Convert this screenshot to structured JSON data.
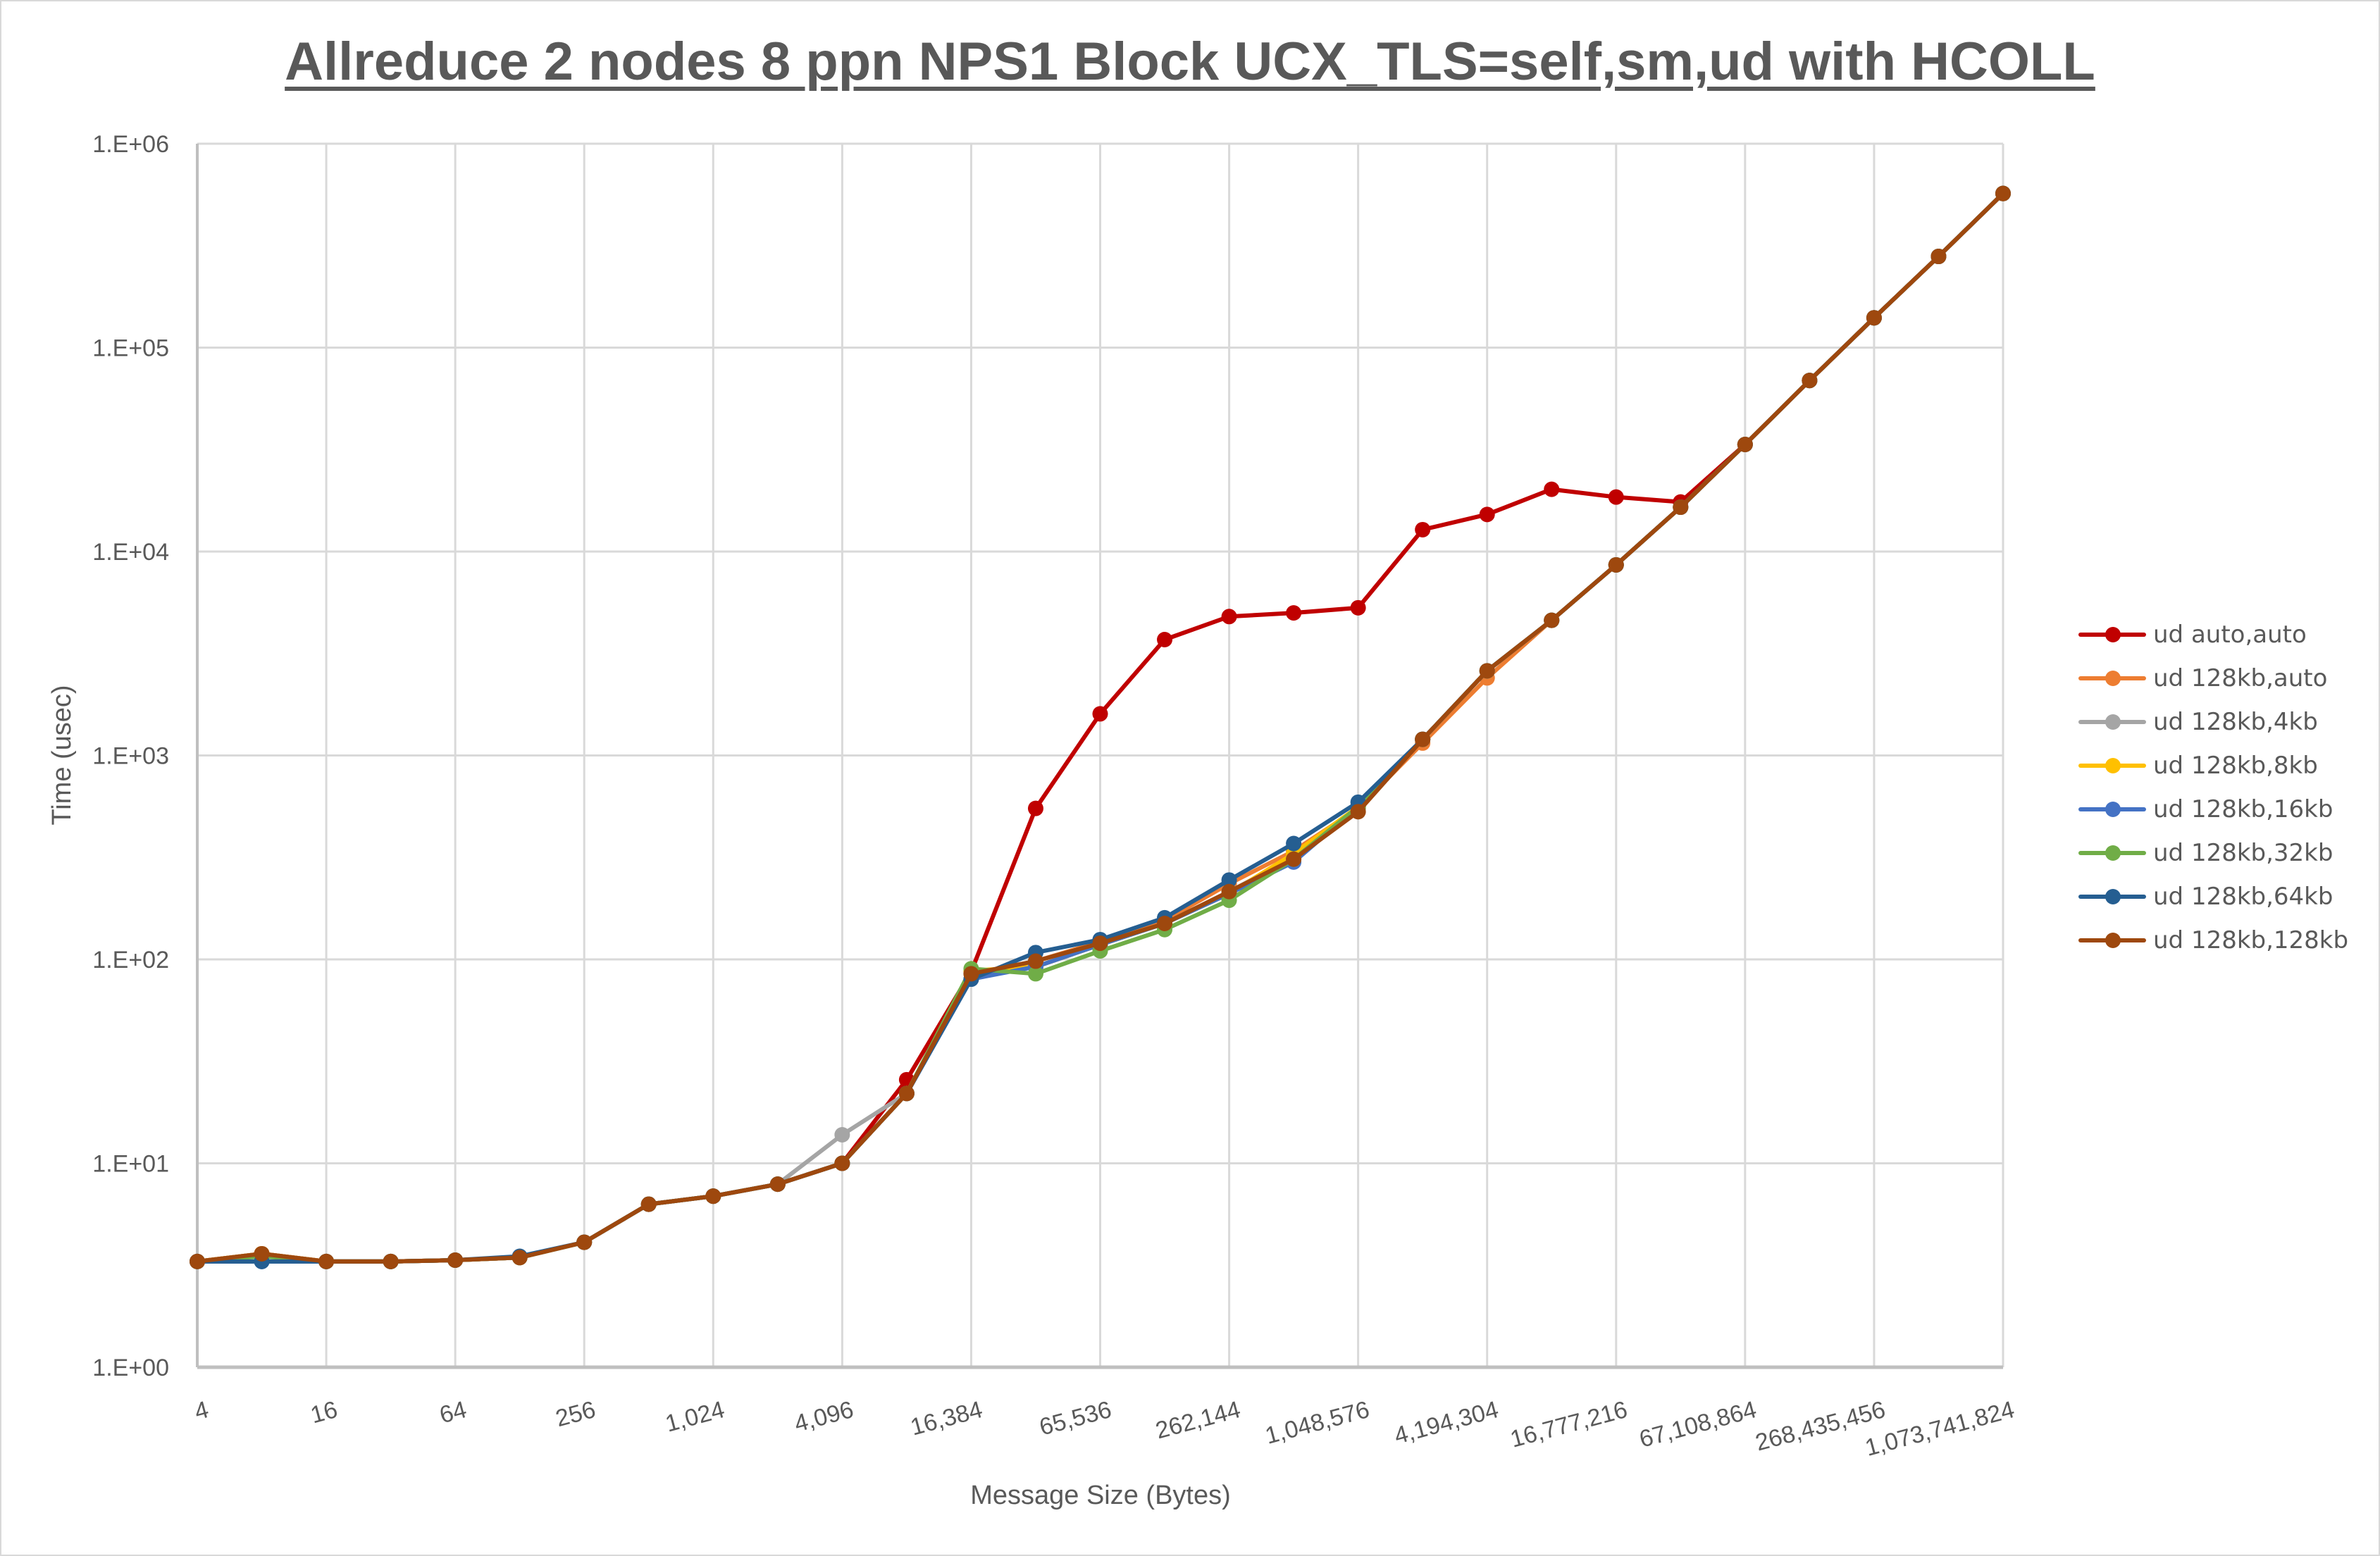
{
  "chart": {
    "title": "Allreduce 2 nodes 8 ppn NPS1 Block UCX_TLS=self,sm,ud with HCOLL",
    "xlabel": "Message Size (Bytes)",
    "ylabel": "Time (usec)"
  },
  "chart_data": {
    "type": "line",
    "title": "Allreduce 2 nodes 8 ppn NPS1 Block UCX_TLS=self,sm,ud with HCOLL",
    "xlabel": "Message Size (Bytes)",
    "ylabel": "Time (usec)",
    "yscale": "log",
    "ylim": [
      1,
      1000000
    ],
    "y_ticks": [
      "1.E+00",
      "1.E+01",
      "1.E+02",
      "1.E+03",
      "1.E+04",
      "1.E+05",
      "1.E+06"
    ],
    "x_tick_labels": [
      "4",
      "16",
      "64",
      "256",
      "1,024",
      "4,096",
      "16,384",
      "65,536",
      "262,144",
      "1,048,576",
      "4,194,304",
      "16,777,216",
      "67,108,864",
      "268,435,456",
      "1,073,741,824"
    ],
    "grid": true,
    "legend_position": "right",
    "x": [
      4,
      8,
      16,
      32,
      64,
      128,
      256,
      512,
      1024,
      2048,
      4096,
      8192,
      16384,
      32768,
      65536,
      131072,
      262144,
      524288,
      1048576,
      2097152,
      4194304,
      8388608,
      16777216,
      33554432,
      67108864,
      134217728,
      268435456,
      536870912,
      1073741824
    ],
    "series": [
      {
        "name": "ud auto,auto",
        "color": "#C00000",
        "values": [
          3.3,
          3.6,
          3.3,
          3.3,
          3.35,
          3.45,
          4.1,
          6.3,
          6.9,
          7.9,
          10,
          25.7,
          87,
          550,
          1600,
          3700,
          4800,
          5000,
          5300,
          12800,
          15200,
          20200,
          18500,
          17500,
          33500,
          69000,
          140000,
          280000,
          570000
        ]
      },
      {
        "name": "ud 128kb,auto",
        "color": "#ED7D31",
        "values": [
          3.3,
          3.6,
          3.3,
          3.3,
          3.35,
          3.45,
          4.1,
          6.3,
          6.9,
          7.9,
          10,
          22,
          85,
          98,
          122,
          155,
          235,
          340,
          550,
          1150,
          2400,
          4600,
          8600,
          16500,
          33500,
          69000,
          140000,
          280000,
          570000
        ]
      },
      {
        "name": "ud 128kb,4kb",
        "color": "#A5A5A5",
        "values": [
          3.3,
          3.6,
          3.3,
          3.3,
          3.35,
          3.45,
          4.1,
          6.3,
          6.9,
          7.9,
          13.8,
          22,
          85,
          92,
          118,
          150,
          215,
          315,
          550,
          1200,
          2600,
          4600,
          8600,
          16500,
          33500,
          69000,
          140000,
          280000,
          570000
        ]
      },
      {
        "name": "ud 128kb,8kb",
        "color": "#FFC000",
        "values": [
          3.3,
          3.6,
          3.3,
          3.3,
          3.35,
          3.45,
          4.1,
          6.3,
          6.9,
          7.9,
          10,
          22,
          88,
          92,
          118,
          150,
          210,
          330,
          560,
          1200,
          2600,
          4600,
          8600,
          16500,
          33500,
          69000,
          140000,
          280000,
          570000
        ]
      },
      {
        "name": "ud 128kb,16kb",
        "color": "#4472C4",
        "values": [
          3.3,
          3.3,
          3.3,
          3.3,
          3.35,
          3.45,
          4.1,
          6.3,
          6.9,
          7.9,
          10,
          22,
          80,
          92,
          118,
          150,
          210,
          300,
          560,
          1200,
          2600,
          4600,
          8600,
          16500,
          33500,
          69000,
          140000,
          280000,
          570000
        ]
      },
      {
        "name": "ud 128kb,32kb",
        "color": "#70AD47",
        "values": [
          3.3,
          3.5,
          3.3,
          3.3,
          3.35,
          3.45,
          4.1,
          6.3,
          6.9,
          7.9,
          10,
          22,
          90,
          85,
          110,
          140,
          195,
          310,
          560,
          1200,
          2600,
          4600,
          8600,
          16500,
          33500,
          69000,
          140000,
          280000,
          570000
        ]
      },
      {
        "name": "ud 128kb,64kb",
        "color": "#255E91",
        "values": [
          3.3,
          3.3,
          3.3,
          3.3,
          3.35,
          3.5,
          4.1,
          6.3,
          6.9,
          7.9,
          10,
          22,
          80,
          108,
          125,
          160,
          245,
          370,
          590,
          1200,
          2600,
          4600,
          8600,
          16500,
          33500,
          69000,
          140000,
          280000,
          570000
        ]
      },
      {
        "name": "ud 128kb,128kb",
        "color": "#9E480E",
        "values": [
          3.3,
          3.6,
          3.3,
          3.3,
          3.35,
          3.45,
          4.1,
          6.3,
          6.9,
          7.9,
          10,
          22,
          85,
          98,
          120,
          150,
          215,
          310,
          530,
          1200,
          2600,
          4600,
          8600,
          16500,
          33500,
          69000,
          140000,
          280000,
          570000
        ]
      }
    ]
  },
  "legend": {
    "items": [
      {
        "label": "ud auto,auto",
        "color": "#C00000"
      },
      {
        "label": "ud 128kb,auto",
        "color": "#ED7D31"
      },
      {
        "label": "ud 128kb,4kb",
        "color": "#A5A5A5"
      },
      {
        "label": "ud 128kb,8kb",
        "color": "#FFC000"
      },
      {
        "label": "ud 128kb,16kb",
        "color": "#4472C4"
      },
      {
        "label": "ud 128kb,32kb",
        "color": "#70AD47"
      },
      {
        "label": "ud 128kb,64kb",
        "color": "#255E91"
      },
      {
        "label": "ud 128kb,128kb",
        "color": "#9E480E"
      }
    ]
  }
}
